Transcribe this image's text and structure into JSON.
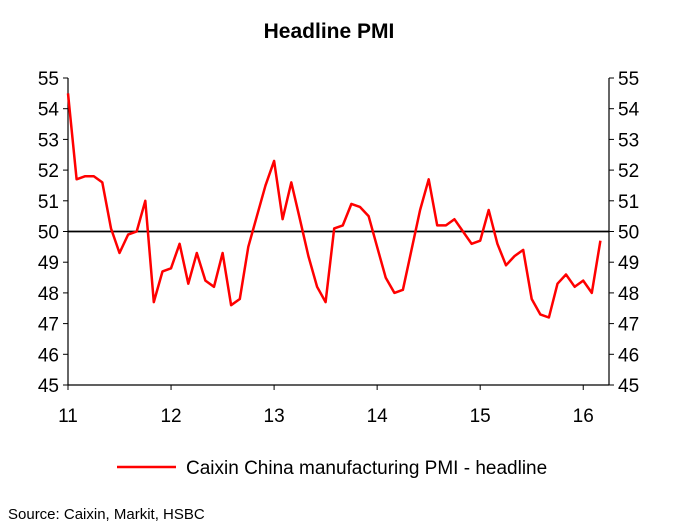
{
  "chart_data": {
    "type": "line",
    "title": "Headline PMI",
    "source": "Source: Caixin, Markit, HSBC",
    "legend": "bottom",
    "ylim": [
      45,
      55
    ],
    "yticks": [
      45,
      46,
      47,
      48,
      49,
      50,
      51,
      52,
      53,
      54,
      55
    ],
    "xlim": [
      2011.0,
      2016.25
    ],
    "xticks": [
      {
        "value": 2011,
        "label": "11"
      },
      {
        "value": 2012,
        "label": "12"
      },
      {
        "value": 2013,
        "label": "13"
      },
      {
        "value": 2014,
        "label": "14"
      },
      {
        "value": 2015,
        "label": "15"
      },
      {
        "value": 2016,
        "label": "16"
      }
    ],
    "reference_line": 50,
    "grid": false,
    "line_color": "#ff0000",
    "series": [
      {
        "name": "Caixin China manufacturing PMI - headline",
        "x": [
          2011.0,
          2011.083,
          2011.167,
          2011.25,
          2011.333,
          2011.417,
          2011.5,
          2011.583,
          2011.667,
          2011.75,
          2011.833,
          2011.917,
          2012.0,
          2012.083,
          2012.167,
          2012.25,
          2012.333,
          2012.417,
          2012.5,
          2012.583,
          2012.667,
          2012.75,
          2012.833,
          2012.917,
          2013.0,
          2013.083,
          2013.167,
          2013.25,
          2013.333,
          2013.417,
          2013.5,
          2013.583,
          2013.667,
          2013.75,
          2013.833,
          2013.917,
          2014.0,
          2014.083,
          2014.167,
          2014.25,
          2014.333,
          2014.417,
          2014.5,
          2014.583,
          2014.667,
          2014.75,
          2014.833,
          2014.917,
          2015.0,
          2015.083,
          2015.167,
          2015.25,
          2015.333,
          2015.417,
          2015.5,
          2015.583,
          2015.667,
          2015.75,
          2015.833,
          2015.917,
          2016.0,
          2016.083,
          2016.167
        ],
        "values": [
          54.5,
          51.7,
          51.8,
          51.8,
          51.6,
          50.1,
          49.3,
          49.9,
          50.0,
          51.0,
          47.7,
          48.7,
          48.8,
          49.6,
          48.3,
          49.3,
          48.4,
          48.2,
          49.3,
          47.6,
          47.8,
          49.5,
          50.5,
          51.5,
          52.3,
          50.4,
          51.6,
          50.4,
          49.2,
          48.2,
          47.7,
          50.1,
          50.2,
          50.9,
          50.8,
          50.5,
          49.5,
          48.5,
          48.0,
          48.1,
          49.4,
          50.7,
          51.7,
          50.2,
          50.2,
          50.4,
          50.0,
          49.6,
          49.7,
          50.7,
          49.6,
          48.9,
          49.2,
          49.4,
          47.8,
          47.3,
          47.2,
          48.3,
          48.6,
          48.2,
          48.4,
          48.0,
          49.7
        ]
      }
    ]
  }
}
